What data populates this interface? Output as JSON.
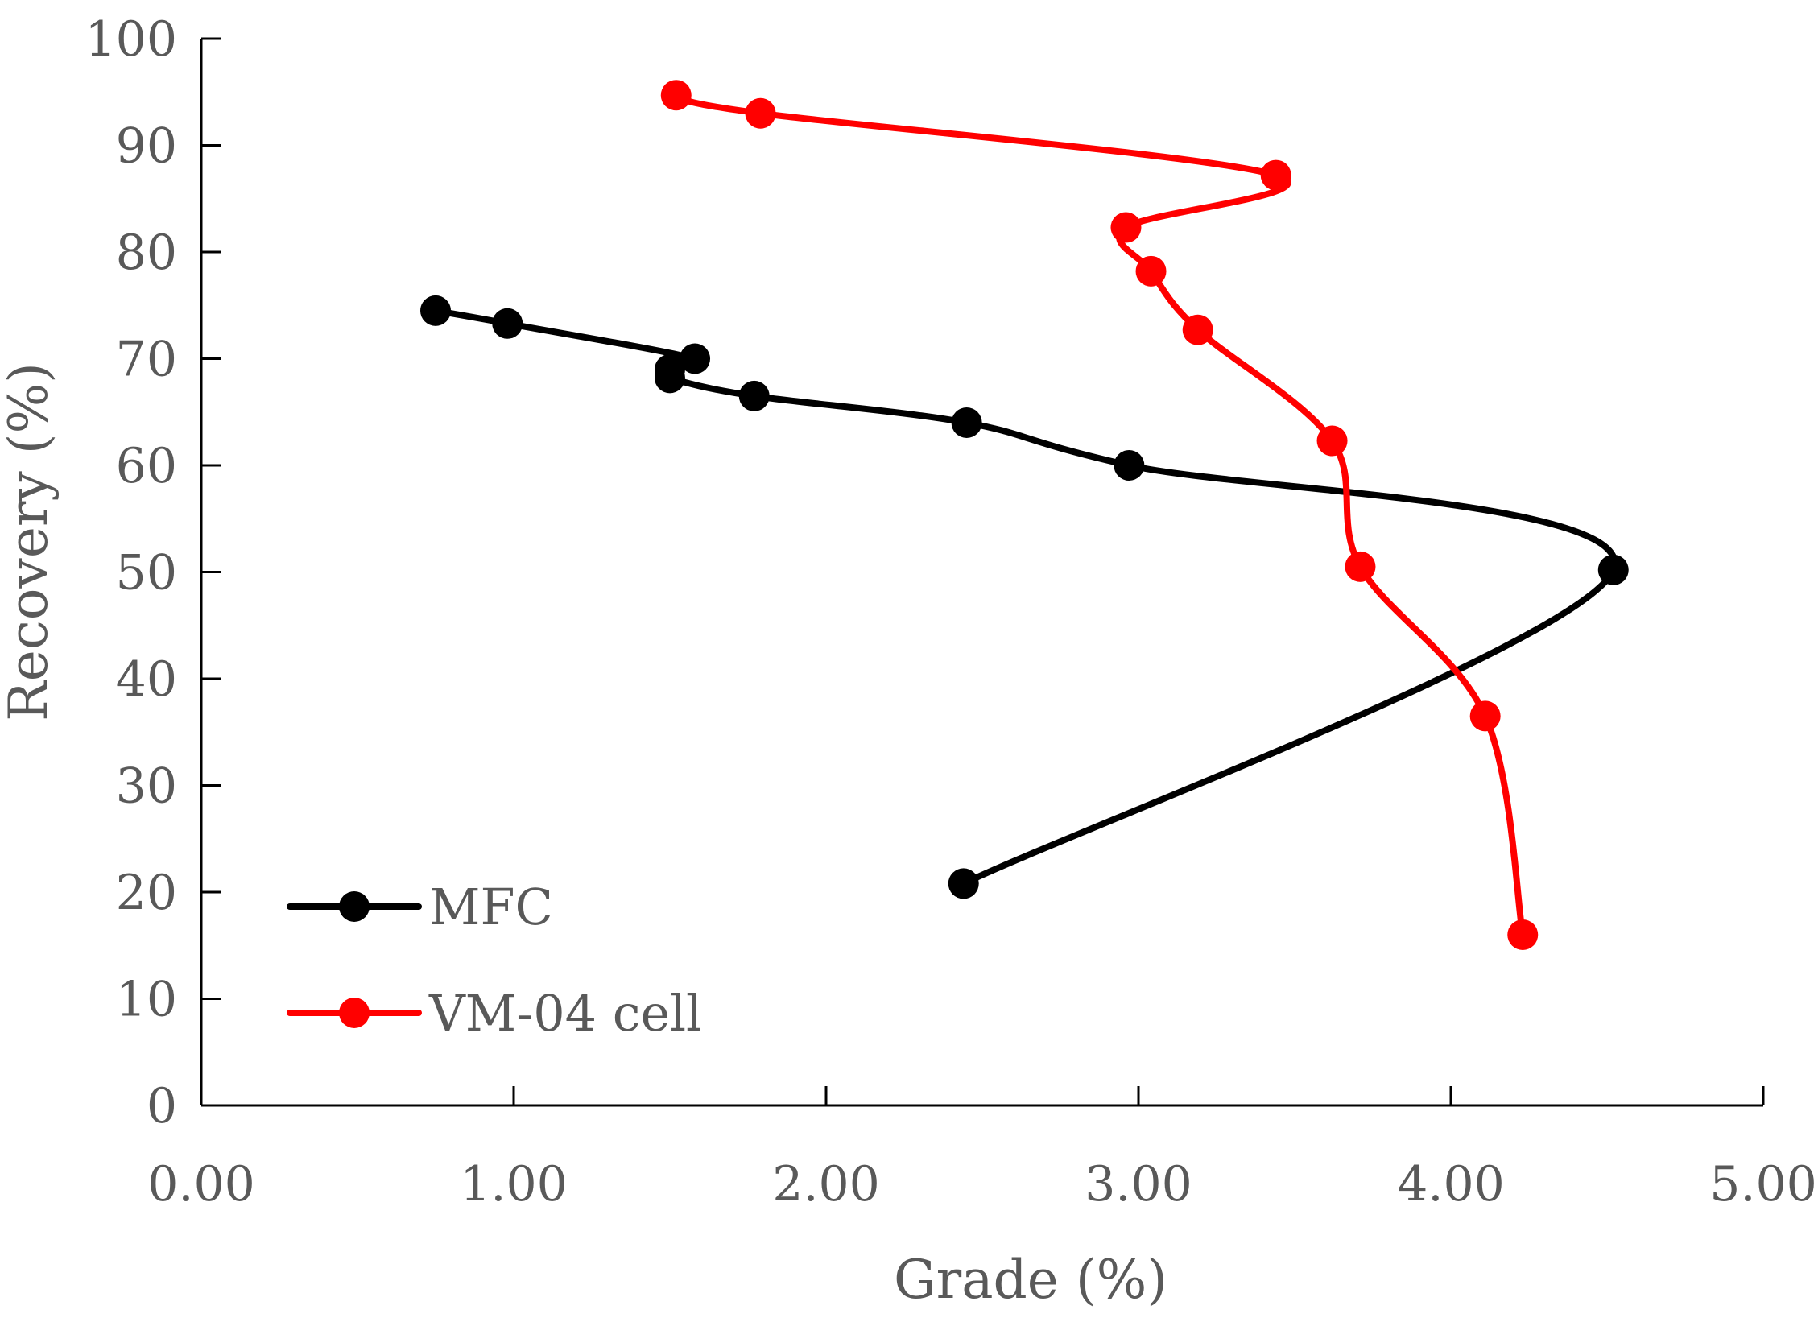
{
  "chart_data": {
    "type": "line",
    "title": "",
    "xlabel": "Grade (%)",
    "ylabel": "Recovery (%)",
    "xlim": [
      0,
      5
    ],
    "ylim": [
      0,
      100
    ],
    "x_ticks": [
      "0.00",
      "1.00",
      "2.00",
      "3.00",
      "4.00",
      "5.00"
    ],
    "y_ticks": [
      "0",
      "10",
      "20",
      "30",
      "40",
      "50",
      "60",
      "70",
      "80",
      "90",
      "100"
    ],
    "grid": false,
    "legend_position": "bottom-left",
    "series": [
      {
        "name": "MFC",
        "color": "#000000",
        "points": [
          {
            "x": 0.75,
            "y": 74.5
          },
          {
            "x": 0.98,
            "y": 73.3
          },
          {
            "x": 1.58,
            "y": 70.0
          },
          {
            "x": 1.5,
            "y": 69.0
          },
          {
            "x": 1.5,
            "y": 68.2
          },
          {
            "x": 1.77,
            "y": 66.5
          },
          {
            "x": 2.45,
            "y": 64.0
          },
          {
            "x": 2.97,
            "y": 60.0
          },
          {
            "x": 4.52,
            "y": 50.2
          },
          {
            "x": 2.44,
            "y": 20.8
          }
        ]
      },
      {
        "name": "VM-04 cell",
        "color": "#ff0000",
        "points": [
          {
            "x": 1.52,
            "y": 94.7
          },
          {
            "x": 1.79,
            "y": 93.0
          },
          {
            "x": 3.44,
            "y": 87.2
          },
          {
            "x": 2.96,
            "y": 82.3
          },
          {
            "x": 3.04,
            "y": 78.2
          },
          {
            "x": 3.19,
            "y": 72.7
          },
          {
            "x": 3.62,
            "y": 62.3
          },
          {
            "x": 3.71,
            "y": 50.5
          },
          {
            "x": 4.11,
            "y": 36.5
          },
          {
            "x": 4.23,
            "y": 16.0
          }
        ]
      }
    ]
  }
}
